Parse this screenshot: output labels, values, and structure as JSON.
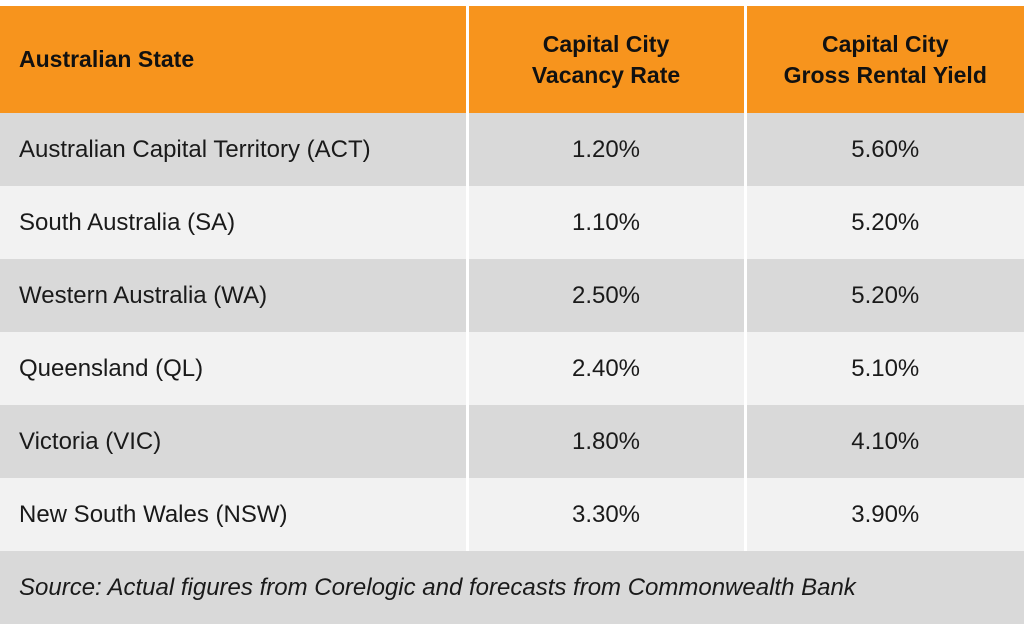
{
  "chart_data": {
    "type": "table",
    "columns": [
      "Australian State",
      [
        "Capital City",
        "Vacancy Rate"
      ],
      [
        "Capital City",
        "Gross Rental Yield"
      ]
    ],
    "rows": [
      {
        "state": "Australian Capital Territory (ACT)",
        "vacancy": "1.20%",
        "yield": "5.60%"
      },
      {
        "state": "South Australia (SA)",
        "vacancy": "1.10%",
        "yield": "5.20%"
      },
      {
        "state": "Western Australia (WA)",
        "vacancy": "2.50%",
        "yield": "5.20%"
      },
      {
        "state": "Queensland (QL)",
        "vacancy": "2.40%",
        "yield": "5.10%"
      },
      {
        "state": "Victoria (VIC)",
        "vacancy": "1.80%",
        "yield": "4.10%"
      },
      {
        "state": "New South Wales (NSW)",
        "vacancy": "3.30%",
        "yield": "3.90%"
      }
    ],
    "source": "Source: Actual figures from Corelogic and forecasts from Commonwealth Bank"
  },
  "colors": {
    "header_bg": "#f7941d",
    "row_dark": "#d9d9d9",
    "row_light": "#f2f2f2"
  }
}
